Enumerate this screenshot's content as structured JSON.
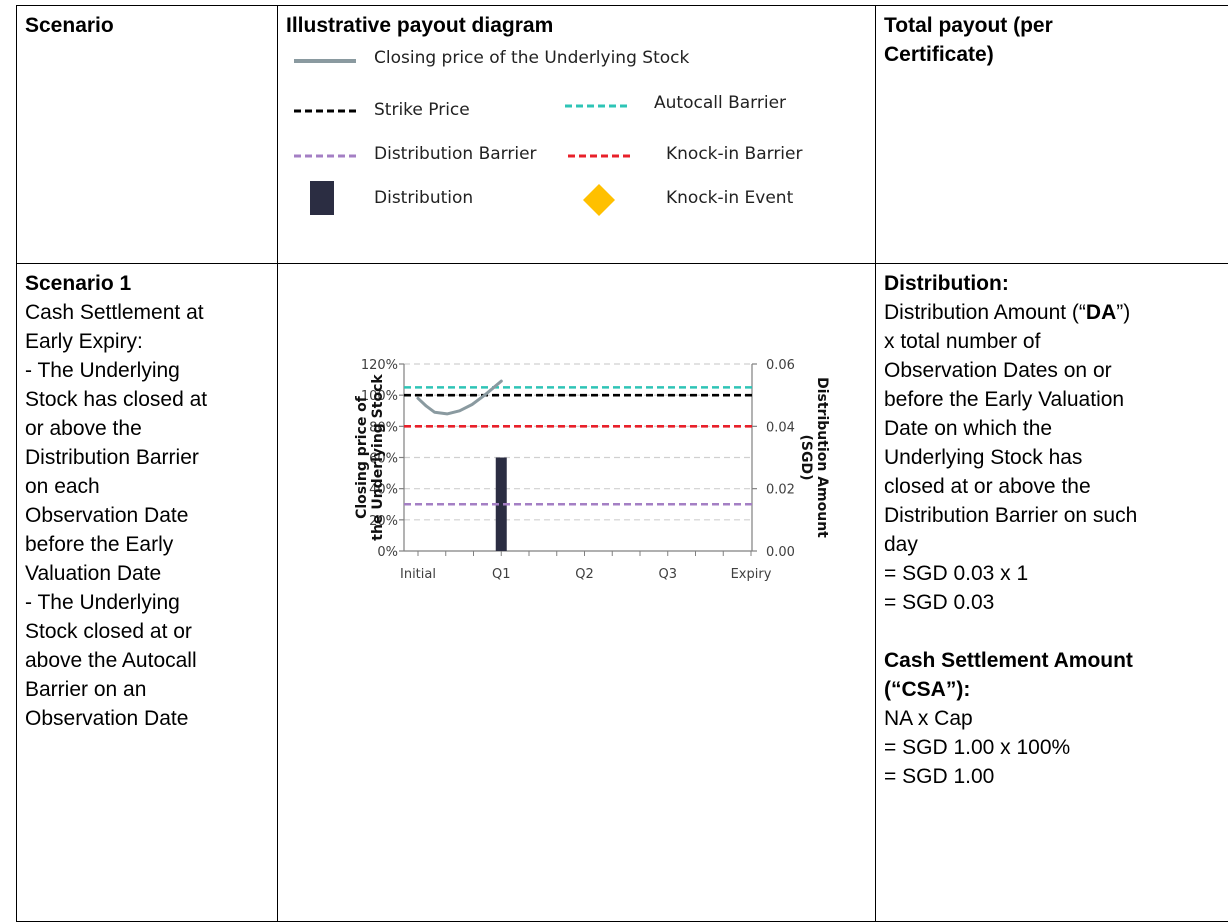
{
  "headers": {
    "scenario": "Scenario",
    "diagram": "Illustrative payout diagram",
    "payout_line1": "Total payout (per",
    "payout_line2": "Certificate)"
  },
  "legend": {
    "closing_price": "Closing price of the Underlying Stock",
    "strike_price": "Strike Price",
    "autocall_barrier": "Autocall Barrier",
    "distribution_barrier": "Distribution Barrier",
    "knockin_barrier": "Knock-in Barrier",
    "distribution": "Distribution",
    "knockin_event": "Knock-in Event"
  },
  "colors": {
    "closing_price": "#8a9aa0",
    "strike_price": "#000000",
    "autocall_barrier": "#2ec4b6",
    "distribution_barrier": "#a47fc4",
    "knockin_barrier": "#e8202a",
    "distribution": "#2b2d42",
    "knockin_event": "#ffc000"
  },
  "scenario1": {
    "title": "Scenario 1",
    "lines": [
      "Cash Settlement at",
      "Early Expiry:",
      "- The Underlying",
      "Stock has closed at",
      "or above the",
      "Distribution Barrier",
      "on each",
      "Observation Date",
      "before the Early",
      "Valuation Date",
      "- The Underlying",
      "Stock closed at or",
      "above the Autocall",
      "Barrier on an",
      "Observation Date"
    ]
  },
  "payout": {
    "dist_title": "Distribution:",
    "da_pre": "Distribution Amount (“",
    "da_bold": "DA",
    "da_post": "”)",
    "dist_lines": [
      "x total number of",
      "Observation Dates on or",
      "before the Early Valuation",
      "Date on which the",
      "Underlying Stock has",
      "closed at or above the",
      "Distribution Barrier on such",
      "day",
      "= SGD 0.03 x 1",
      "= SGD 0.03"
    ],
    "csa_title1": "Cash Settlement Amount",
    "csa_title2": "(“CSA”):",
    "csa_lines": [
      "NA x Cap",
      "= SGD 1.00 x 100%",
      "= SGD 1.00"
    ]
  },
  "chart_data": {
    "type": "line",
    "x_categories": [
      "Initial",
      "Q1",
      "Q2",
      "Q3",
      "Expiry"
    ],
    "ylabel_left_line1": "Closing price of",
    "ylabel_left_line2": "the Underlying Stock",
    "ylabel_right_line1": "Distribution Amount",
    "ylabel_right_line2": "(SGD)",
    "yticks_left": [
      "0%",
      "20%",
      "40%",
      "60%",
      "80%",
      "100%",
      "120%"
    ],
    "yticks_right": [
      "0.00",
      "0.02",
      "0.04",
      "0.06"
    ],
    "ylim_left": [
      0,
      120
    ],
    "ylim_right": [
      0,
      0.06
    ],
    "grid": true,
    "horizontal_lines": [
      {
        "key": "autocall_barrier",
        "value": 105
      },
      {
        "key": "strike_price",
        "value": 100
      },
      {
        "key": "knockin_barrier",
        "value": 80
      },
      {
        "key": "distribution_barrier",
        "value": 30
      }
    ],
    "closing_price_curve": [
      {
        "x": 0,
        "y": 98
      },
      {
        "x": 0.1,
        "y": 93
      },
      {
        "x": 0.2,
        "y": 89
      },
      {
        "x": 0.35,
        "y": 88
      },
      {
        "x": 0.5,
        "y": 90
      },
      {
        "x": 0.65,
        "y": 94
      },
      {
        "x": 0.8,
        "y": 100
      },
      {
        "x": 1,
        "y": 109
      }
    ],
    "distribution_bars": [
      {
        "x": 1,
        "value": 0.03
      }
    ]
  }
}
